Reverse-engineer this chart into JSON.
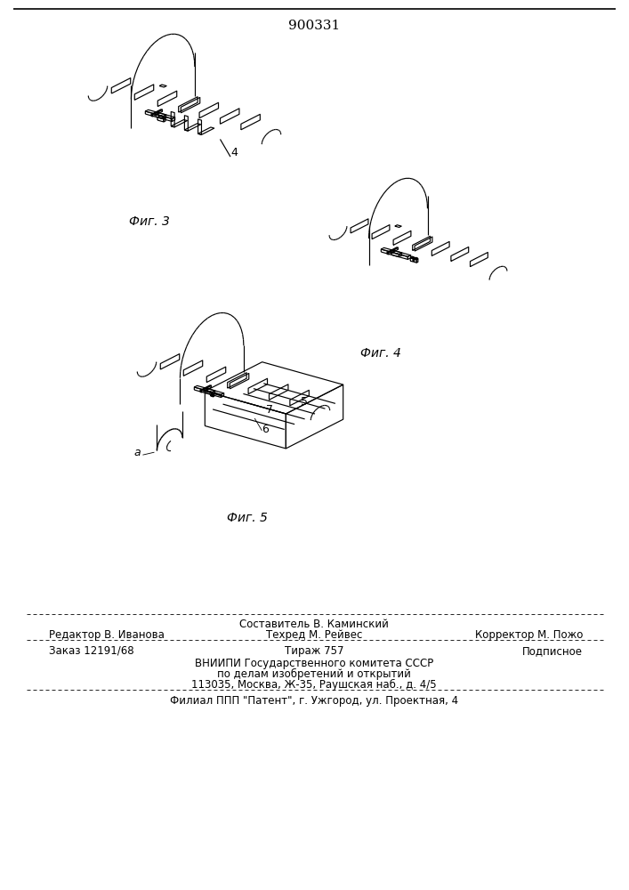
{
  "patent_number": "900331",
  "fig3_label": "Фиг. 3",
  "fig4_label": "Фиг. 4",
  "fig5_label": "Фиг. 5",
  "footer_editor": "Редактор В. Иванова",
  "footer_composer": "Составитель В. Каминский",
  "footer_tech": "Техред М. Рейвес",
  "footer_corrector": "Корректор М. Пожо",
  "footer_order": "Заказ 12191/68",
  "footer_copies": "Тираж 757",
  "footer_signed": "Подписное",
  "footer_org1": "ВНИИПИ Государственного комитета СССР",
  "footer_org2": "по делам изобретений и открытий",
  "footer_org3": "113035, Москва, Ж-35, Раушская наб., д. 4/5",
  "footer_branch": "Филиал ППП \"Патент\", г. Ужгород, ул. Проектная, 4",
  "bg_color": "#ffffff",
  "lc": "#000000",
  "lw": 0.8
}
